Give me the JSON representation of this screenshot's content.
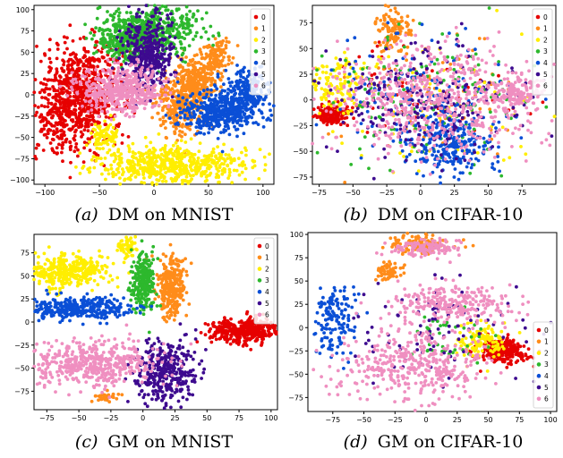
{
  "palette": [
    "#e60000",
    "#ff8c1a",
    "#ffee00",
    "#2db82d",
    "#0a4fd6",
    "#3d0a8f",
    "#ef8fc0"
  ],
  "legend_labels": [
    "0",
    "1",
    "2",
    "3",
    "4",
    "5",
    "6"
  ],
  "chart_data": [
    {
      "type": "scatter",
      "caption_letter": "(a)",
      "caption_text": "DM on MNIST",
      "xlim": [
        -110,
        110
      ],
      "ylim": [
        -105,
        105
      ],
      "xticks": [
        -100,
        -50,
        0,
        50,
        100
      ],
      "yticks": [
        -100,
        -75,
        -50,
        -25,
        0,
        25,
        50,
        75,
        100
      ],
      "legend_position": "top-right",
      "grid": false,
      "series": [
        {
          "label": "0",
          "clusters": [
            [
              -65,
              5,
              22,
              28,
              700
            ],
            [
              -80,
              -30,
              12,
              20,
              200
            ]
          ]
        },
        {
          "label": "1",
          "clusters": [
            [
              25,
              -10,
              12,
              18,
              350
            ],
            [
              42,
              20,
              10,
              14,
              250
            ],
            [
              58,
              45,
              6,
              9,
              100
            ]
          ]
        },
        {
          "label": "2",
          "clusters": [
            [
              15,
              -82,
              35,
              11,
              600
            ],
            [
              -45,
              -48,
              6,
              8,
              80
            ]
          ]
        },
        {
          "label": "3",
          "clusters": [
            [
              -5,
              75,
              22,
              14,
              600
            ],
            [
              -30,
              60,
              10,
              10,
              120
            ]
          ]
        },
        {
          "label": "4",
          "clusters": [
            [
              62,
              -20,
              20,
              12,
              450
            ],
            [
              85,
              5,
              10,
              12,
              200
            ]
          ]
        },
        {
          "label": "5",
          "clusters": [
            [
              -5,
              45,
              12,
              22,
              400
            ]
          ]
        },
        {
          "label": "6",
          "clusters": [
            [
              -30,
              5,
              18,
              14,
              450
            ]
          ]
        }
      ]
    },
    {
      "type": "scatter",
      "caption_letter": "(b)",
      "caption_text": "DM on CIFAR-10",
      "xlim": [
        -80,
        100
      ],
      "ylim": [
        -82,
        92
      ],
      "xticks": [
        -75,
        -50,
        -25,
        0,
        25,
        50,
        75
      ],
      "yticks": [
        -75,
        -50,
        -25,
        0,
        25,
        50,
        75
      ],
      "legend_position": "top-right",
      "grid": false,
      "series": [
        {
          "label": "0",
          "clusters": [
            [
              -65,
              -15,
              6,
              5,
              150
            ],
            [
              5,
              10,
              35,
              25,
              60
            ]
          ]
        },
        {
          "label": "1",
          "clusters": [
            [
              -20,
              70,
              6,
              12,
              120
            ],
            [
              0,
              0,
              35,
              30,
              80
            ]
          ]
        },
        {
          "label": "2",
          "clusters": [
            [
              -60,
              15,
              12,
              14,
              120
            ],
            [
              10,
              -10,
              35,
              30,
              80
            ]
          ]
        },
        {
          "label": "3",
          "clusters": [
            [
              5,
              0,
              38,
              30,
              150
            ]
          ]
        },
        {
          "label": "4",
          "clusters": [
            [
              20,
              -45,
              15,
              15,
              250
            ],
            [
              0,
              0,
              40,
              30,
              150
            ]
          ]
        },
        {
          "label": "5",
          "clusters": [
            [
              0,
              0,
              40,
              30,
              250
            ]
          ]
        },
        {
          "label": "6",
          "clusters": [
            [
              10,
              0,
              40,
              28,
              600
            ],
            [
              70,
              5,
              10,
              8,
              150
            ]
          ]
        }
      ]
    },
    {
      "type": "scatter",
      "caption_letter": "(c)",
      "caption_text": "GM on MNIST",
      "xlim": [
        -85,
        105
      ],
      "ylim": [
        -95,
        95
      ],
      "xticks": [
        -75,
        -50,
        -25,
        0,
        25,
        50,
        75,
        100
      ],
      "yticks": [
        -75,
        -50,
        -25,
        0,
        25,
        50,
        75
      ],
      "legend_position": "top-right",
      "grid": false,
      "series": [
        {
          "label": "0",
          "clusters": [
            [
              78,
              -10,
              14,
              7,
              400
            ]
          ]
        },
        {
          "label": "1",
          "clusters": [
            [
              22,
              40,
              6,
              16,
              300
            ],
            [
              -28,
              -82,
              5,
              3,
              40
            ]
          ]
        },
        {
          "label": "2",
          "clusters": [
            [
              -60,
              55,
              18,
              9,
              350
            ],
            [
              -12,
              82,
              4,
              6,
              60
            ]
          ]
        },
        {
          "label": "3",
          "clusters": [
            [
              0,
              42,
              5,
              16,
              250
            ]
          ]
        },
        {
          "label": "4",
          "clusters": [
            [
              -52,
              15,
              20,
              6,
              350
            ]
          ]
        },
        {
          "label": "5",
          "clusters": [
            [
              18,
              -55,
              12,
              18,
              350
            ]
          ]
        },
        {
          "label": "6",
          "clusters": [
            [
              -40,
              -45,
              25,
              12,
              500
            ]
          ]
        }
      ]
    },
    {
      "type": "scatter",
      "caption_letter": "(d)",
      "caption_text": "GM on CIFAR-10",
      "xlim": [
        -95,
        105
      ],
      "ylim": [
        -90,
        102
      ],
      "xticks": [
        -75,
        -50,
        -25,
        0,
        25,
        50,
        75,
        100
      ],
      "yticks": [
        -75,
        -50,
        -25,
        0,
        25,
        50,
        75,
        100
      ],
      "legend_position": "lower-right",
      "grid": false,
      "series": [
        {
          "label": "0",
          "clusters": [
            [
              62,
              -25,
              10,
              7,
              250
            ]
          ]
        },
        {
          "label": "1",
          "clusters": [
            [
              -5,
              90,
              12,
              5,
              120
            ],
            [
              -30,
              60,
              5,
              5,
              60
            ]
          ]
        },
        {
          "label": "2",
          "clusters": [
            [
              45,
              -15,
              10,
              10,
              120
            ]
          ]
        },
        {
          "label": "3",
          "clusters": [
            [
              15,
              -10,
              20,
              15,
              40
            ]
          ]
        },
        {
          "label": "4",
          "clusters": [
            [
              -72,
              5,
              8,
              20,
              150
            ]
          ]
        },
        {
          "label": "5",
          "clusters": [
            [
              10,
              0,
              40,
              30,
              100
            ]
          ]
        },
        {
          "label": "6",
          "clusters": [
            [
              -10,
              -40,
              30,
              18,
              400
            ],
            [
              20,
              25,
              28,
              10,
              250
            ],
            [
              0,
              85,
              15,
              5,
              120
            ]
          ]
        }
      ]
    }
  ]
}
